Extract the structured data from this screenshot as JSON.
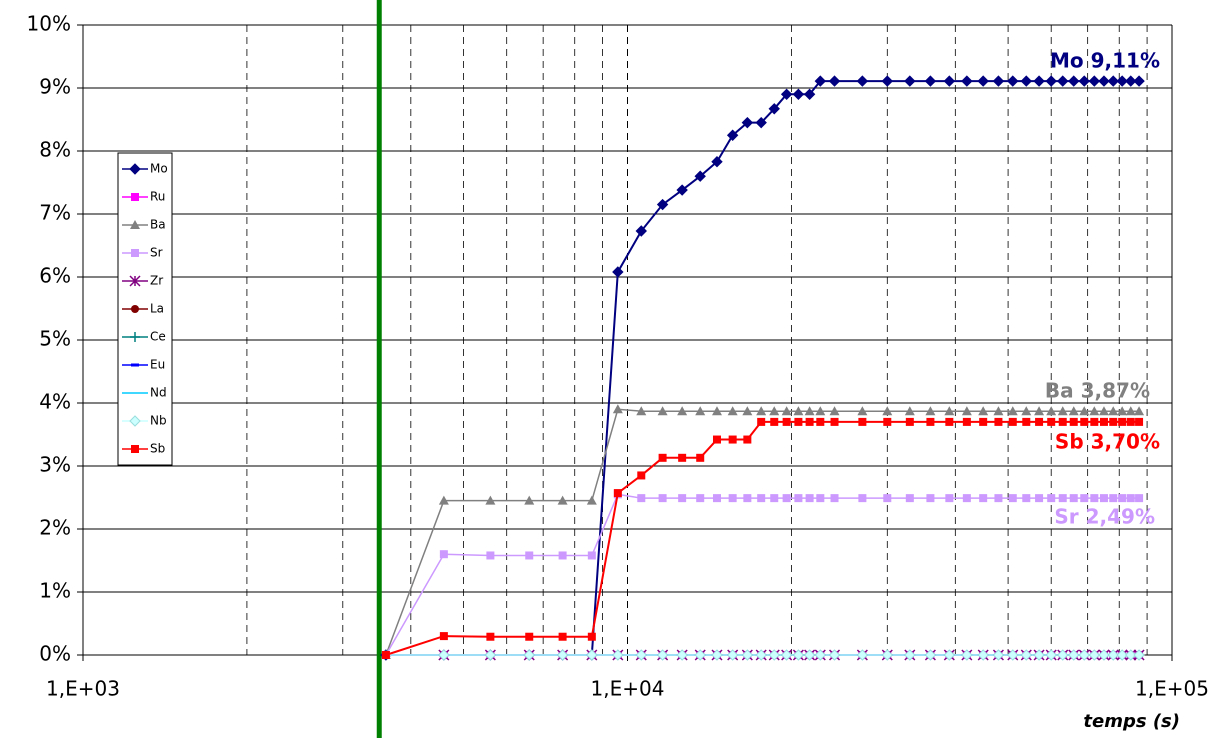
{
  "chart_data": {
    "type": "line",
    "x_scale": "log",
    "x": [
      3600,
      4600,
      5600,
      6600,
      7600,
      8600,
      9600,
      10600,
      11600,
      12600,
      13600,
      14600,
      15600,
      16600,
      17600,
      18600,
      19600,
      20600,
      21600,
      22600,
      24000,
      27000,
      30000,
      33000,
      36000,
      39000,
      42000,
      45000,
      48000,
      51000,
      54000,
      57000,
      60000,
      63000,
      66000,
      69000,
      72000,
      75000,
      78000,
      81000,
      84000,
      87000
    ],
    "xlim": [
      1000,
      100000
    ],
    "xticks": [
      {
        "value": 1000,
        "label": "1,E+03"
      },
      {
        "value": 10000,
        "label": "1,E+04"
      },
      {
        "value": 100000,
        "label": "1,E+05"
      }
    ],
    "xminor": [
      2000,
      3000,
      4000,
      5000,
      6000,
      7000,
      8000,
      9000,
      20000,
      30000,
      40000,
      50000,
      60000,
      70000,
      80000,
      90000
    ],
    "ylim": [
      0,
      10
    ],
    "yticks": [
      {
        "value": 0,
        "label": "0%"
      },
      {
        "value": 1,
        "label": "1%"
      },
      {
        "value": 2,
        "label": "2%"
      },
      {
        "value": 3,
        "label": "3%"
      },
      {
        "value": 4,
        "label": "4%"
      },
      {
        "value": 5,
        "label": "5%"
      },
      {
        "value": 6,
        "label": "6%"
      },
      {
        "value": 7,
        "label": "7%"
      },
      {
        "value": 8,
        "label": "8%"
      },
      {
        "value": 9,
        "label": "9%"
      },
      {
        "value": 10,
        "label": "10%"
      }
    ],
    "grid": true,
    "x_label": "temps (s)",
    "vline": {
      "x": 3500,
      "color": "#008000"
    },
    "legend": "left",
    "series": [
      {
        "name": "Mo",
        "color": "#000080",
        "marker": "diamond",
        "values": [
          0,
          0,
          0,
          0,
          0,
          0,
          6.08,
          6.73,
          7.15,
          7.38,
          7.6,
          7.83,
          8.25,
          8.45,
          8.45,
          8.67,
          8.9,
          8.9,
          8.9,
          9.11,
          9.11,
          9.11,
          9.11,
          9.11,
          9.11,
          9.11,
          9.11,
          9.11,
          9.11,
          9.11,
          9.11,
          9.11,
          9.11,
          9.11,
          9.11,
          9.11,
          9.11,
          9.11,
          9.11,
          9.11,
          9.11,
          9.11
        ]
      },
      {
        "name": "Ru",
        "color": "#ff00ff",
        "marker": "square",
        "values": [
          0,
          0,
          0,
          0,
          0,
          0,
          0,
          0,
          0,
          0,
          0,
          0,
          0,
          0,
          0,
          0,
          0,
          0,
          0,
          0,
          0,
          0,
          0,
          0,
          0,
          0,
          0,
          0,
          0,
          0,
          0,
          0,
          0,
          0,
          0,
          0,
          0,
          0,
          0,
          0,
          0,
          0
        ]
      },
      {
        "name": "Ba",
        "color": "#808080",
        "marker": "triangle",
        "values": [
          0,
          2.45,
          2.45,
          2.45,
          2.45,
          2.45,
          3.9,
          3.87,
          3.87,
          3.87,
          3.87,
          3.87,
          3.87,
          3.87,
          3.87,
          3.87,
          3.87,
          3.87,
          3.87,
          3.87,
          3.87,
          3.87,
          3.87,
          3.87,
          3.87,
          3.87,
          3.87,
          3.87,
          3.87,
          3.87,
          3.87,
          3.87,
          3.87,
          3.87,
          3.87,
          3.87,
          3.87,
          3.87,
          3.87,
          3.87,
          3.87,
          3.87
        ]
      },
      {
        "name": "Sr",
        "color": "#cc99ff",
        "marker": "square",
        "values": [
          0,
          1.6,
          1.58,
          1.58,
          1.58,
          1.58,
          2.55,
          2.49,
          2.49,
          2.49,
          2.49,
          2.49,
          2.49,
          2.49,
          2.49,
          2.49,
          2.49,
          2.49,
          2.49,
          2.49,
          2.49,
          2.49,
          2.49,
          2.49,
          2.49,
          2.49,
          2.49,
          2.49,
          2.49,
          2.49,
          2.49,
          2.49,
          2.49,
          2.49,
          2.49,
          2.49,
          2.49,
          2.49,
          2.49,
          2.49,
          2.49,
          2.49
        ]
      },
      {
        "name": "Zr",
        "color": "#800080",
        "marker": "star",
        "values": [
          0,
          0,
          0,
          0,
          0,
          0,
          0,
          0,
          0,
          0,
          0,
          0,
          0,
          0,
          0,
          0,
          0,
          0,
          0,
          0,
          0,
          0,
          0,
          0,
          0,
          0,
          0,
          0,
          0,
          0,
          0,
          0,
          0,
          0,
          0,
          0,
          0,
          0,
          0,
          0,
          0,
          0
        ]
      },
      {
        "name": "La",
        "color": "#800000",
        "marker": "circle",
        "values": [
          0,
          0,
          0,
          0,
          0,
          0,
          0,
          0,
          0,
          0,
          0,
          0,
          0,
          0,
          0,
          0,
          0,
          0,
          0,
          0,
          0,
          0,
          0,
          0,
          0,
          0,
          0,
          0,
          0,
          0,
          0,
          0,
          0,
          0,
          0,
          0,
          0,
          0,
          0,
          0,
          0,
          0
        ]
      },
      {
        "name": "Ce",
        "color": "#008080",
        "marker": "plus",
        "values": [
          0,
          0,
          0,
          0,
          0,
          0,
          0,
          0,
          0,
          0,
          0,
          0,
          0,
          0,
          0,
          0,
          0,
          0,
          0,
          0,
          0,
          0,
          0,
          0,
          0,
          0,
          0,
          0,
          0,
          0,
          0,
          0,
          0,
          0,
          0,
          0,
          0,
          0,
          0,
          0,
          0,
          0
        ]
      },
      {
        "name": "Eu",
        "color": "#0000ff",
        "marker": "dash",
        "values": [
          0,
          0,
          0,
          0,
          0,
          0,
          0,
          0,
          0,
          0,
          0,
          0,
          0,
          0,
          0,
          0,
          0,
          0,
          0,
          0,
          0,
          0,
          0,
          0,
          0,
          0,
          0,
          0,
          0,
          0,
          0,
          0,
          0,
          0,
          0,
          0,
          0,
          0,
          0,
          0,
          0,
          0
        ]
      },
      {
        "name": "Nd",
        "color": "#00ccff",
        "marker": "none",
        "values": [
          0,
          0,
          0,
          0,
          0,
          0,
          0,
          0,
          0,
          0,
          0,
          0,
          0,
          0,
          0,
          0,
          0,
          0,
          0,
          0,
          0,
          0,
          0,
          0,
          0,
          0,
          0,
          0,
          0,
          0,
          0,
          0,
          0,
          0,
          0,
          0,
          0,
          0,
          0,
          0,
          0,
          0
        ]
      },
      {
        "name": "Nb",
        "color": "#ccffff",
        "marker": "diamond",
        "values": [
          0,
          0,
          0,
          0,
          0,
          0,
          0,
          0,
          0,
          0,
          0,
          0,
          0,
          0,
          0,
          0,
          0,
          0,
          0,
          0,
          0,
          0,
          0,
          0,
          0,
          0,
          0,
          0,
          0,
          0,
          0,
          0,
          0,
          0,
          0,
          0,
          0,
          0,
          0,
          0,
          0,
          0
        ]
      },
      {
        "name": "Sb",
        "color": "#ff0000",
        "marker": "square",
        "values": [
          0,
          0.3,
          0.29,
          0.29,
          0.29,
          0.29,
          2.57,
          2.85,
          3.13,
          3.13,
          3.13,
          3.42,
          3.42,
          3.42,
          3.7,
          3.7,
          3.7,
          3.7,
          3.7,
          3.7,
          3.7,
          3.7,
          3.7,
          3.7,
          3.7,
          3.7,
          3.7,
          3.7,
          3.7,
          3.7,
          3.7,
          3.7,
          3.7,
          3.7,
          3.7,
          3.7,
          3.7,
          3.7,
          3.7,
          3.7,
          3.7,
          3.7
        ]
      }
    ],
    "annotations": [
      {
        "text": "Mo 9,11%",
        "color": "#000080"
      },
      {
        "text": "Ba 3,87%",
        "color": "#808080"
      },
      {
        "text": "Sb 3,70%",
        "color": "#ff0000"
      },
      {
        "text": "Sr 2,49%",
        "color": "#cc99ff"
      }
    ]
  }
}
